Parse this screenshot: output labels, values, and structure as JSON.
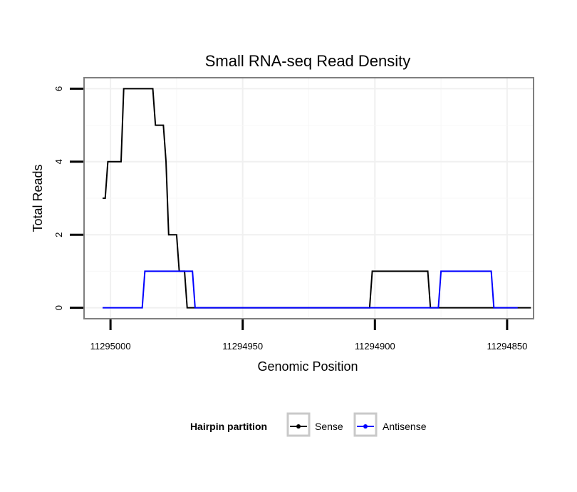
{
  "chart_data": {
    "type": "line",
    "title": "Small RNA-seq Read Density",
    "xlabel": "Genomic Position",
    "ylabel": "Total Reads",
    "xlim": [
      11295010,
      11294840
    ],
    "ylim": [
      -0.3,
      6.3
    ],
    "x_reversed": true,
    "xticks": [
      11295000,
      11294950,
      11294900,
      11294850
    ],
    "xtick_labels": [
      "11295000",
      "11294950",
      "11294900",
      "11294850"
    ],
    "yticks": [
      0,
      2,
      4,
      6
    ],
    "ytick_labels": [
      "0",
      "2",
      "4",
      "6"
    ],
    "grid": true,
    "legend": {
      "title": "Hairpin partition",
      "position": "bottom",
      "entries": [
        "Sense",
        "Antisense"
      ]
    },
    "series": [
      {
        "name": "Sense",
        "color": "#000000",
        "points": [
          [
            11295003,
            3
          ],
          [
            11295002,
            3
          ],
          [
            11295001,
            4
          ],
          [
            11294996,
            4
          ],
          [
            11294995,
            6
          ],
          [
            11294984,
            6
          ],
          [
            11294983,
            5
          ],
          [
            11294980,
            5
          ],
          [
            11294979,
            4
          ],
          [
            11294978,
            2
          ],
          [
            11294975,
            2
          ],
          [
            11294974,
            1
          ],
          [
            11294972,
            1
          ],
          [
            11294971,
            0
          ],
          [
            11294902,
            0
          ],
          [
            11294901,
            1
          ],
          [
            11294880,
            1
          ],
          [
            11294879,
            0
          ],
          [
            11294841,
            0
          ]
        ]
      },
      {
        "name": "Antisense",
        "color": "#0000ff",
        "points": [
          [
            11295003,
            0
          ],
          [
            11294988,
            0
          ],
          [
            11294987,
            1
          ],
          [
            11294969,
            1
          ],
          [
            11294968,
            0
          ],
          [
            11294902,
            0
          ],
          [
            11294876,
            0
          ],
          [
            11294875,
            1
          ],
          [
            11294856,
            1
          ],
          [
            11294855,
            0
          ],
          [
            11294846,
            0
          ]
        ]
      }
    ]
  }
}
